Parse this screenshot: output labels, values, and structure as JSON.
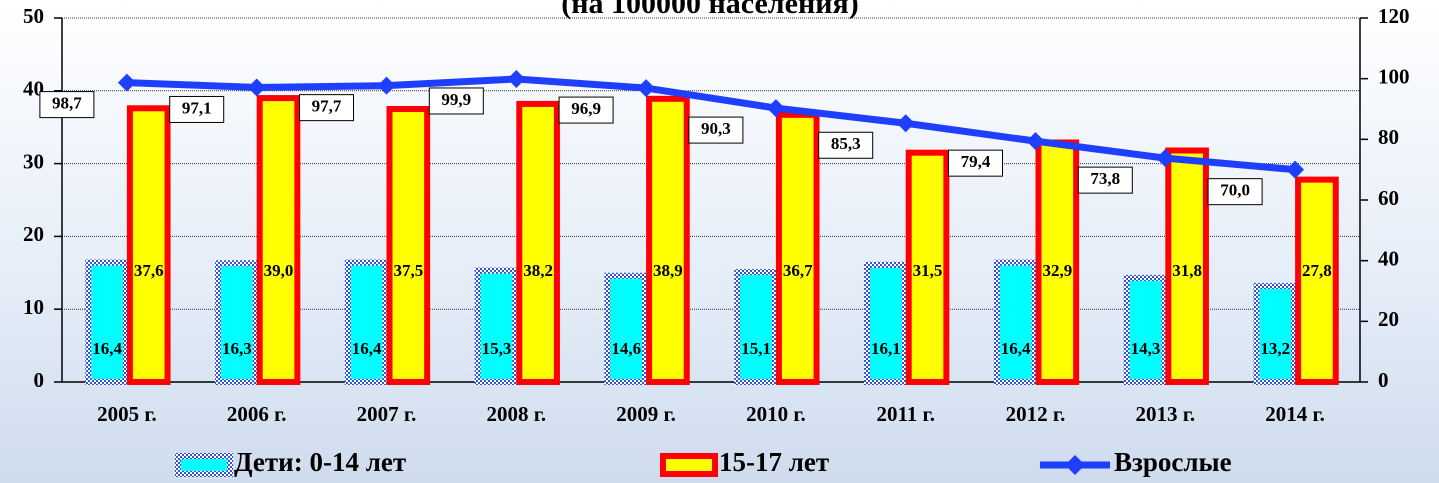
{
  "chart_data": {
    "type": "bar",
    "title": "(на 100000 населения)",
    "categories": [
      "2005 г.",
      "2006 г.",
      "2007 г.",
      "2008 г.",
      "2009 г.",
      "2010 г.",
      "2011 г.",
      "2012 г.",
      "2013 г.",
      "2014 г."
    ],
    "series": [
      {
        "name": "Дети: 0-14 лет",
        "color": "#00ffff",
        "type": "bar",
        "values": [
          16.4,
          16.3,
          16.4,
          15.3,
          14.6,
          15.1,
          16.1,
          16.4,
          14.3,
          13.2
        ],
        "value_labels": [
          "16,4",
          "16,3",
          "16,4",
          "15,3",
          "14,6",
          "15,1",
          "16,1",
          "16,4",
          "14,3",
          "13,2"
        ]
      },
      {
        "name": "15-17 лет",
        "color": "#ffff00",
        "type": "bar",
        "values": [
          37.6,
          39.0,
          37.5,
          38.2,
          38.9,
          36.7,
          31.5,
          32.9,
          31.8,
          27.8
        ],
        "value_labels": [
          "37,6",
          "39,0",
          "37,5",
          "38,2",
          "38,9",
          "36,7",
          "31,5",
          "32,9",
          "31,8",
          "27,8"
        ]
      },
      {
        "name": "Взрослые",
        "color": "#1f3fff",
        "type": "line",
        "axis": "y2",
        "values": [
          98.7,
          97.1,
          97.7,
          99.9,
          96.9,
          90.3,
          85.3,
          79.4,
          73.8,
          70.0
        ],
        "value_labels": [
          "98,7",
          "97,1",
          "97,7",
          "99,9",
          "96,9",
          "90,3",
          "85,3",
          "79,4",
          "73,8",
          "70,0"
        ]
      }
    ],
    "ylim": [
      0,
      50
    ],
    "yticks": [
      0,
      10,
      20,
      30,
      40,
      50
    ],
    "y2lim": [
      0,
      120
    ],
    "y2ticks": [
      0,
      20,
      40,
      60,
      80,
      100,
      120
    ],
    "grid": true,
    "legend": "bottom"
  }
}
